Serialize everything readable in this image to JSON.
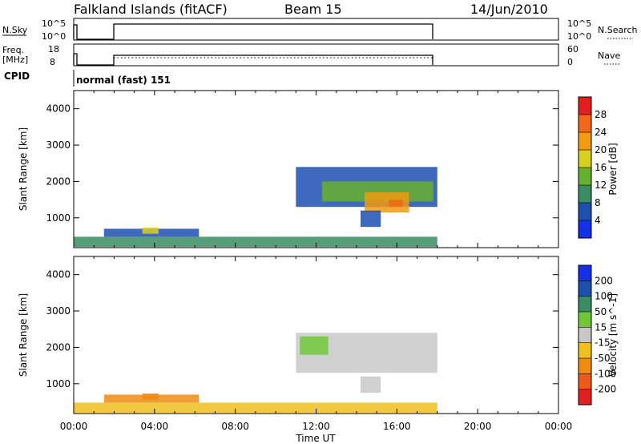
{
  "header": {
    "title": "Falkland Islands (fitACF)",
    "beam": "Beam 15",
    "date": "14/Jun/2010"
  },
  "status_panels": {
    "nsky_label": "N.Sky",
    "nsky_ticks": [
      "10^5",
      "10^0"
    ],
    "nsearch_label": "N.Search",
    "nsearch_ticks": [
      "10^5",
      "10^0"
    ],
    "freq_label_top": "Freq.",
    "freq_label_bottom": "[MHz]",
    "freq_ticks": [
      "18",
      "8"
    ],
    "nave_label": "Nave",
    "nave_ticks": [
      "60",
      "0"
    ],
    "cpid_label": "CPID",
    "cpid_value": "normal (fast) 151"
  },
  "colors": {
    "power_scale": [
      "#1530e6",
      "#1d4fb0",
      "#3a8c62",
      "#68b030",
      "#d8d020",
      "#f29a10",
      "#f06818",
      "#e21e1e"
    ],
    "velocity_scale": [
      "#e02020",
      "#ee5a18",
      "#f08c10",
      "#f0c020",
      "#c8c8c8",
      "#70c838",
      "#3a8c62",
      "#1d4fb0",
      "#1530e6"
    ]
  },
  "chart_data": [
    {
      "type": "heatmap",
      "panel": "power",
      "ylabel": "Slant Range [km]",
      "xlabel": "Time UT",
      "x_ticks": [
        "00:00",
        "04:00",
        "08:00",
        "12:00",
        "16:00",
        "20:00",
        "00:00"
      ],
      "y_ticks": [
        1000,
        2000,
        3000,
        4000
      ],
      "xlim": [
        0,
        24
      ],
      "ylim": [
        180,
        4500
      ],
      "colorbar_label": "Power [dB]",
      "colorbar_ticks": [
        4,
        8,
        12,
        16,
        20,
        24,
        28
      ],
      "regions": [
        {
          "t0": 11.0,
          "t1": 18.0,
          "r0": 1300,
          "r1": 2400,
          "level": 1
        },
        {
          "t0": 12.3,
          "t1": 17.8,
          "r0": 1450,
          "r1": 2000,
          "level": 3
        },
        {
          "t0": 14.4,
          "t1": 16.6,
          "r0": 1150,
          "r1": 1700,
          "level": 5
        },
        {
          "t0": 15.6,
          "t1": 16.3,
          "r0": 1300,
          "r1": 1500,
          "level": 6
        },
        {
          "t0": 14.2,
          "t1": 15.2,
          "r0": 750,
          "r1": 1200,
          "level": 1
        },
        {
          "t0": 1.5,
          "t1": 6.2,
          "r0": 480,
          "r1": 700,
          "level": 1
        },
        {
          "t0": 3.4,
          "t1": 4.2,
          "r0": 560,
          "r1": 730,
          "level": 4
        },
        {
          "t0": 0.0,
          "t1": 18.0,
          "r0": 200,
          "r1": 480,
          "level": 2
        }
      ]
    },
    {
      "type": "heatmap",
      "panel": "velocity",
      "ylabel": "Slant Range [km]",
      "xlabel": "Time UT",
      "x_ticks": [
        "00:00",
        "04:00",
        "08:00",
        "12:00",
        "16:00",
        "20:00",
        "00:00"
      ],
      "y_ticks": [
        1000,
        2000,
        3000,
        4000
      ],
      "xlim": [
        0,
        24
      ],
      "ylim": [
        180,
        4500
      ],
      "colorbar_label": "Velocity [m s^-1]",
      "colorbar_ticks": [
        -200,
        -100,
        -50,
        -15,
        15,
        50,
        100,
        200
      ],
      "colorbar_tick_labels": [
        "-200",
        "-100",
        "-50",
        "-15",
        "15",
        "50",
        "100",
        "200"
      ],
      "regions": [
        {
          "t0": 11.0,
          "t1": 18.0,
          "r0": 1300,
          "r1": 2400,
          "level": 4
        },
        {
          "t0": 11.2,
          "t1": 12.6,
          "r0": 1800,
          "r1": 2300,
          "level": 5
        },
        {
          "t0": 14.2,
          "t1": 15.2,
          "r0": 750,
          "r1": 1200,
          "level": 4
        },
        {
          "t0": 1.5,
          "t1": 6.2,
          "r0": 480,
          "r1": 700,
          "level": 2
        },
        {
          "t0": 3.4,
          "t1": 4.2,
          "r0": 560,
          "r1": 730,
          "level": 2
        },
        {
          "t0": 0.0,
          "t1": 18.0,
          "r0": 200,
          "r1": 480,
          "level": 3
        }
      ]
    }
  ]
}
